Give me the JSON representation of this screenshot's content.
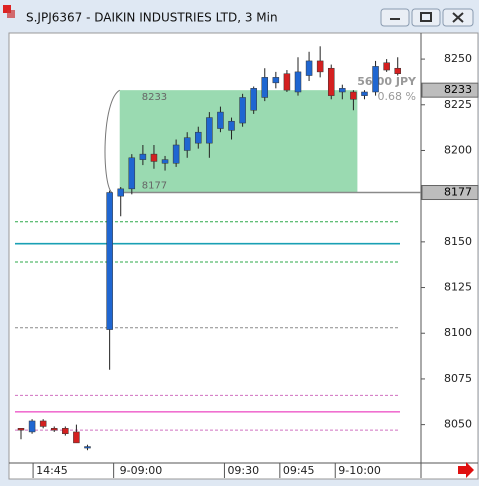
{
  "window_title": "S.JPJ6367 - DAIKIN INDUSTRIES LTD, 3 Min",
  "chart_data": {
    "type": "candlestick",
    "categories": [
      null,
      "14:45",
      null,
      null,
      null,
      null,
      null,
      null,
      "9-09:00",
      null,
      null,
      null,
      null,
      null,
      null,
      null,
      null,
      null,
      "09:30",
      null,
      null,
      null,
      null,
      "09:45",
      null,
      null,
      null,
      null,
      "9-10:00",
      null,
      null,
      null,
      null,
      null,
      null
    ],
    "open": [
      8048,
      8046,
      8052,
      8048,
      8048,
      8046,
      8038,
      null,
      8102,
      8175,
      8179,
      8195,
      8198,
      8193,
      8193,
      8200,
      8204,
      8204,
      8212,
      8211,
      8215,
      8222,
      8229,
      8237,
      8242,
      8232,
      8241,
      8249,
      8245,
      8232,
      8232,
      8230,
      8232,
      8248,
      8245
    ],
    "high": [
      8048,
      8053,
      8053,
      8049,
      8049,
      8050,
      8039,
      null,
      8178,
      8180,
      8198,
      8203,
      8203,
      8197,
      8206,
      8210,
      8213,
      8221,
      8224,
      8218,
      8231,
      8235,
      8245,
      8243,
      8244,
      8251,
      8254,
      8257,
      8247,
      8236,
      8233,
      8233,
      8249,
      8250,
      8251
    ],
    "low": [
      8042,
      8045,
      8048,
      8046,
      8044,
      8040,
      8036,
      null,
      8080,
      8164,
      8176,
      8192,
      8190,
      8189,
      8191,
      8196,
      8201,
      8196,
      8210,
      8206,
      8213,
      8220,
      8227,
      8234,
      8232,
      8230,
      8238,
      8240,
      8228,
      8228,
      8222,
      8228,
      8230,
      8243,
      8241
    ],
    "close": [
      8047,
      8052,
      8049,
      8047,
      8045,
      8040,
      8038,
      null,
      8177,
      8179,
      8196,
      8198,
      8194,
      8195,
      8203,
      8207,
      8210,
      8218,
      8221,
      8216,
      8229,
      8234,
      8240,
      8240,
      8233,
      8243,
      8249,
      8243,
      8230,
      8234,
      8228,
      8232,
      8246,
      8244,
      8242
    ],
    "up_color": "#1f66d1",
    "down_color": "#d42020",
    "ylim": [
      8029,
      8264
    ],
    "yticks": [
      8050,
      8075,
      8100,
      8125,
      8150,
      8175,
      8200,
      8225,
      8250
    ],
    "levels": [
      {
        "value": 8177,
        "color": "#8a8a8a",
        "style": "solid"
      },
      {
        "value": 8161,
        "color": "#2ea84a",
        "style": "dashed"
      },
      {
        "value": 8149,
        "color": "#1aa0b4",
        "style": "solid"
      },
      {
        "value": 8139,
        "color": "#2ea84a",
        "style": "dashed"
      },
      {
        "value": 8103,
        "color": "#8a8a8a",
        "style": "dashed"
      },
      {
        "value": 8066,
        "color": "#d070c0",
        "style": "dashed"
      },
      {
        "value": 8057,
        "color": "#f070d0",
        "style": "solid"
      },
      {
        "value": 8047,
        "color": "#d070c0",
        "style": "dashed"
      }
    ],
    "range_box": {
      "high": 8233,
      "low": 8177,
      "color": "#8fd6a8",
      "change_label": "56.00 JPY",
      "pct_label": "0.68 %"
    },
    "price_markers": [
      8233,
      8177
    ]
  }
}
